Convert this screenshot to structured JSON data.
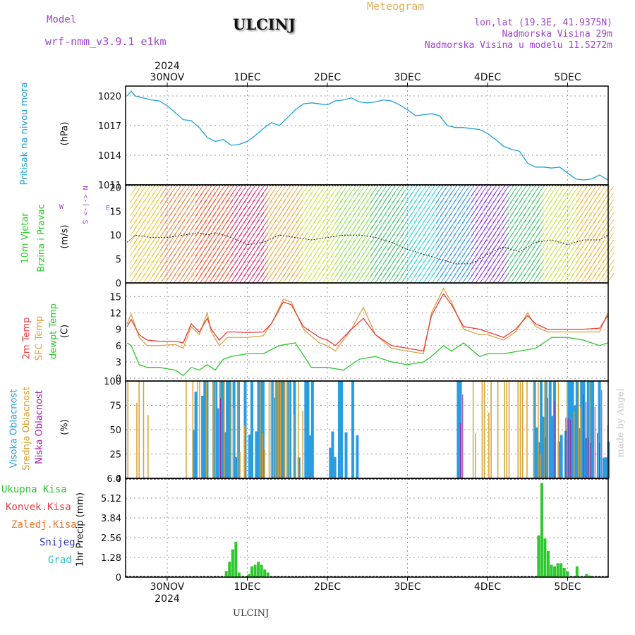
{
  "header": {
    "model_label": "Model",
    "model_name": "wrf-nmm_v3.9.1 e1km",
    "station": "ULCINJ",
    "meteogram": "Meteogram",
    "lonlat": "lon,lat (19.3E, 41.9375N)",
    "elevation": "Nadmorska Visina 29m",
    "model_elevation": "Nadmorska Visina u modelu 11.5272m"
  },
  "time_axis": {
    "year": "2024",
    "labels": [
      "30NOV",
      "1DEC",
      "2DEC",
      "3DEC",
      "4DEC",
      "5DEC"
    ]
  },
  "panel_labels": {
    "pressure": {
      "title": "Pritisak na nivou mora",
      "unit": "(hPa)"
    },
    "wind": {
      "title1": "10m Vjetar",
      "title2": "Brzina i Pravac",
      "unit": "(m/s)",
      "compass_ns": "S <-|-> N",
      "compass_w": "W",
      "compass_e": "E"
    },
    "temp": {
      "t2m": "2m Temp",
      "tsfc": "SFC Temp",
      "tdew": "dewpt Temp",
      "unit": "(C)"
    },
    "cloud": {
      "high": "Visoka Oblacnost",
      "mid": "Srednja Oblacnost",
      "low": "Niska Oblacnost",
      "unit": "(%)"
    },
    "precip": {
      "total": "Ukupna Kisa",
      "conv": "Konvek.Kisa",
      "rel": "Zaledj.Kisa",
      "snow": "Snijeg",
      "grad": "Grad",
      "unit": "1hr Precip (mm)"
    }
  },
  "footer": "ULCINJ",
  "watermark": "made by Angel",
  "colors": {
    "pressure": "#1ea0dc",
    "t2m": "#e83c3c",
    "tsfc": "#e0a040",
    "tdew": "#2cc82c",
    "cloud_high": "#2a9de0",
    "cloud_mid": "#d9a030",
    "cloud_low": "#a020a0",
    "precip_total": "#2cc82c",
    "precip_conv": "#e83c3c",
    "precip_rel": "#f07830",
    "snow": "#3030c8",
    "grad": "#30c0c0",
    "purple_text": "#a040d0",
    "orange_text": "#e0b060"
  },
  "chart_data": [
    {
      "type": "line",
      "name": "pressure",
      "x_unit": "day offset from 30NOV 00h",
      "ylim": [
        1011,
        1021
      ],
      "yticks": [
        1011,
        1014,
        1017,
        1020
      ],
      "x": [
        -0.5,
        -0.45,
        -0.4,
        -0.3,
        -0.2,
        -0.1,
        0,
        0.1,
        0.2,
        0.3,
        0.4,
        0.5,
        0.6,
        0.7,
        0.8,
        0.9,
        1.0,
        1.1,
        1.2,
        1.3,
        1.4,
        1.5,
        1.6,
        1.7,
        1.8,
        1.9,
        2.0,
        2.1,
        2.2,
        2.3,
        2.4,
        2.5,
        2.6,
        2.7,
        2.8,
        2.9,
        3.0,
        3.1,
        3.2,
        3.3,
        3.4,
        3.5,
        3.6,
        3.7,
        3.8,
        3.9,
        4.0,
        4.1,
        4.2,
        4.3,
        4.4,
        4.5,
        4.6,
        4.7,
        4.8,
        4.9,
        5.0,
        5.1,
        5.2,
        5.3,
        5.4,
        5.5
      ],
      "y": [
        1020.0,
        1020.5,
        1020.0,
        1019.8,
        1019.6,
        1019.5,
        1019.0,
        1018.3,
        1017.6,
        1017.5,
        1016.8,
        1015.8,
        1015.4,
        1015.6,
        1015.0,
        1015.1,
        1015.4,
        1016.0,
        1016.7,
        1017.3,
        1017.0,
        1017.8,
        1018.6,
        1019.2,
        1019.3,
        1019.2,
        1019.1,
        1019.5,
        1019.6,
        1019.8,
        1019.4,
        1019.3,
        1019.4,
        1019.6,
        1019.5,
        1019.1,
        1018.6,
        1018.0,
        1018.1,
        1018.2,
        1018.0,
        1017.0,
        1016.8,
        1016.8,
        1016.7,
        1016.6,
        1016.2,
        1015.6,
        1014.9,
        1014.6,
        1014.4,
        1013.2,
        1012.8,
        1012.8,
        1012.7,
        1012.8,
        1012.2,
        1011.6,
        1011.5,
        1011.6,
        1012.0,
        1011.5
      ]
    },
    {
      "type": "line",
      "name": "wind_speed",
      "ylim": [
        0,
        20.5
      ],
      "yticks": [
        0,
        5,
        10,
        15,
        20
      ],
      "x": [
        -0.5,
        -0.4,
        -0.2,
        0,
        0.2,
        0.4,
        0.5,
        0.6,
        0.8,
        1.0,
        1.2,
        1.4,
        1.6,
        1.8,
        2.0,
        2.2,
        2.4,
        2.6,
        2.8,
        3.0,
        3.2,
        3.4,
        3.6,
        3.8,
        4.0,
        4.2,
        4.4,
        4.6,
        4.8,
        5.0,
        5.2,
        5.4,
        5.5
      ],
      "y": [
        8.5,
        10.0,
        9.5,
        9.5,
        10.0,
        10.5,
        10.0,
        10.5,
        9.5,
        8.0,
        8.5,
        10.0,
        9.5,
        9.0,
        9.5,
        10.0,
        10.0,
        9.5,
        8.5,
        7.0,
        6.0,
        5.0,
        4.0,
        4.0,
        6.0,
        7.5,
        6.5,
        8.5,
        9.0,
        8.0,
        9.0,
        9.0,
        10.0
      ]
    },
    {
      "type": "line",
      "name": "temperature",
      "ylim": [
        -0.5,
        17.5
      ],
      "yticks": [
        0,
        3,
        6,
        9,
        12,
        15
      ],
      "series": [
        {
          "name": "2m Temp",
          "x": [
            -0.5,
            -0.45,
            -0.35,
            -0.25,
            -0.1,
            0.1,
            0.2,
            0.3,
            0.4,
            0.5,
            0.55,
            0.65,
            0.75,
            0.85,
            1.0,
            1.2,
            1.3,
            1.45,
            1.55,
            1.7,
            1.9,
            2.0,
            2.1,
            2.3,
            2.45,
            2.6,
            2.8,
            3.0,
            3.2,
            3.3,
            3.45,
            3.55,
            3.7,
            3.9,
            4.0,
            4.2,
            4.35,
            4.5,
            4.6,
            4.75,
            5.0,
            5.2,
            5.4,
            5.5
          ],
          "y": [
            9.5,
            10.8,
            8.0,
            7.0,
            6.8,
            6.8,
            6.5,
            10.0,
            8.5,
            11.0,
            9.0,
            7.0,
            8.5,
            8.5,
            8.4,
            8.5,
            10.0,
            14.0,
            13.5,
            9.5,
            7.5,
            7.0,
            6.0,
            9.0,
            11.0,
            8.0,
            6.0,
            5.5,
            5.0,
            11.5,
            15.5,
            13.5,
            9.5,
            9.0,
            8.5,
            7.5,
            9.0,
            11.5,
            10.0,
            9.0,
            9.0,
            9.0,
            9.2,
            11.5
          ]
        },
        {
          "name": "SFC Temp",
          "x": [
            -0.5,
            -0.45,
            -0.35,
            -0.25,
            -0.1,
            0.1,
            0.2,
            0.3,
            0.4,
            0.5,
            0.55,
            0.65,
            0.75,
            0.85,
            1.0,
            1.2,
            1.3,
            1.45,
            1.55,
            1.7,
            1.9,
            2.0,
            2.1,
            2.3,
            2.45,
            2.6,
            2.8,
            3.0,
            3.2,
            3.3,
            3.45,
            3.55,
            3.7,
            3.9,
            4.0,
            4.2,
            4.35,
            4.5,
            4.6,
            4.75,
            5.0,
            5.2,
            5.4,
            5.5
          ],
          "y": [
            10.0,
            11.8,
            7.5,
            6.0,
            6.0,
            6.2,
            5.5,
            9.5,
            8.0,
            12.0,
            8.5,
            6.0,
            7.5,
            7.5,
            7.5,
            7.8,
            10.0,
            14.5,
            14.0,
            9.0,
            6.5,
            6.0,
            5.0,
            9.0,
            13.0,
            8.0,
            5.5,
            5.0,
            4.5,
            12.0,
            16.5,
            14.0,
            9.0,
            8.0,
            8.0,
            7.0,
            8.5,
            12.0,
            9.5,
            8.5,
            8.5,
            8.5,
            8.5,
            12.0
          ]
        },
        {
          "name": "dewpt Temp",
          "x": [
            -0.5,
            -0.45,
            -0.35,
            -0.25,
            -0.1,
            0.1,
            0.2,
            0.3,
            0.4,
            0.5,
            0.6,
            0.7,
            0.8,
            1.0,
            1.2,
            1.4,
            1.6,
            1.8,
            2.0,
            2.2,
            2.4,
            2.6,
            2.8,
            3.0,
            3.2,
            3.3,
            3.45,
            3.55,
            3.7,
            3.9,
            4.0,
            4.2,
            4.4,
            4.6,
            4.8,
            5.0,
            5.2,
            5.4,
            5.5
          ],
          "y": [
            6.5,
            6.0,
            2.5,
            2.0,
            2.0,
            1.5,
            0.5,
            2.0,
            1.5,
            2.5,
            1.5,
            3.5,
            4.0,
            4.5,
            4.5,
            6.0,
            6.5,
            2.0,
            2.0,
            1.5,
            3.5,
            4.0,
            3.0,
            2.5,
            3.0,
            4.0,
            6.0,
            5.0,
            6.5,
            4.0,
            4.5,
            4.5,
            5.0,
            5.5,
            7.5,
            7.5,
            7.0,
            6.0,
            6.5
          ]
        }
      ]
    },
    {
      "type": "bar",
      "name": "cloud_cover",
      "ylim": [
        0,
        100
      ],
      "yticks": [
        0,
        25,
        50,
        75,
        100
      ]
    },
    {
      "type": "bar",
      "name": "precip_1hr",
      "ylim": [
        0,
        6.4
      ],
      "yticks": [
        0,
        1.28,
        2.56,
        3.84,
        5.12,
        6.4
      ],
      "yticklabels": [
        "0",
        "1.28",
        "2.56",
        "3.84",
        "5.12",
        "6.4"
      ],
      "x": [
        0.72,
        0.76,
        0.8,
        0.84,
        0.88,
        1.0,
        1.04,
        1.08,
        1.12,
        1.16,
        1.2,
        1.24,
        4.62,
        4.66,
        4.7,
        4.74,
        4.78,
        4.82,
        4.86,
        4.9,
        4.94,
        4.98,
        5.1,
        5.22,
        5.26
      ],
      "values": [
        0.4,
        1.0,
        1.8,
        2.3,
        0.3,
        0.2,
        0.7,
        0.8,
        1.0,
        0.8,
        0.5,
        0.3,
        2.7,
        6.1,
        2.5,
        1.7,
        0.8,
        0.7,
        0.9,
        0.9,
        0.6,
        0.4,
        0.7,
        0.2,
        0.1
      ]
    }
  ]
}
